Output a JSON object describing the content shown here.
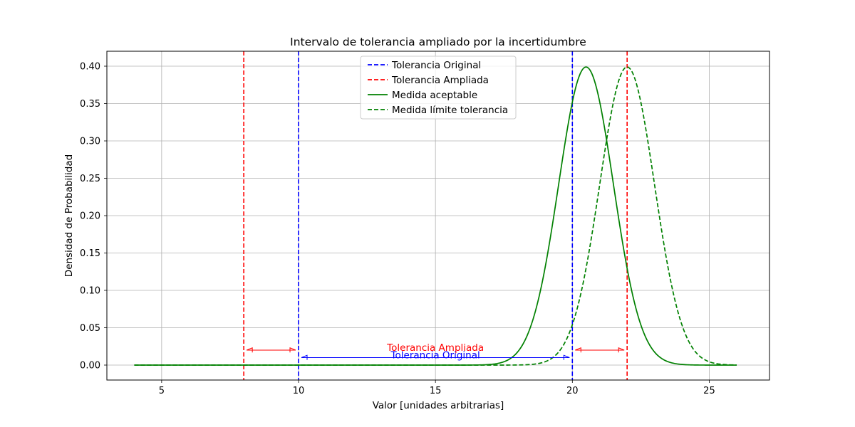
{
  "chart_data": {
    "type": "line",
    "title": "Intervalo de tolerancia ampliado por la incertidumbre",
    "xlabel": "Valor [unidades arbitrarias]",
    "ylabel": "Densidad de Probabilidad",
    "xlim": [
      3,
      27.2
    ],
    "ylim": [
      -0.02,
      0.42
    ],
    "xticks": [
      5,
      10,
      15,
      20,
      25
    ],
    "xtick_labels": [
      "5",
      "10",
      "15",
      "20",
      "25"
    ],
    "yticks": [
      0,
      0.05,
      0.1,
      0.15,
      0.2,
      0.25,
      0.3,
      0.35,
      0.4
    ],
    "ytick_labels": [
      "0.00",
      "0.05",
      "0.10",
      "0.15",
      "0.20",
      "0.25",
      "0.30",
      "0.35",
      "0.40"
    ],
    "grid": true,
    "legend_position": "upper-center",
    "vlines": [
      {
        "series": "Tolerancia Original",
        "x": 10,
        "color": "#0000ff",
        "dashed": true
      },
      {
        "series": "Tolerancia Original",
        "x": 20,
        "color": "#0000ff",
        "dashed": true
      },
      {
        "series": "Tolerancia Ampliada",
        "x": 8,
        "color": "#ff0000",
        "dashed": true
      },
      {
        "series": "Tolerancia Ampliada",
        "x": 22,
        "color": "#ff0000",
        "dashed": true
      }
    ],
    "series": [
      {
        "name": "Tolerancia Original",
        "color": "#0000ff",
        "style": "dashed",
        "kind": "vline"
      },
      {
        "name": "Tolerancia Ampliada",
        "color": "#ff0000",
        "style": "dashed",
        "kind": "vline"
      },
      {
        "name": "Medida aceptable",
        "color": "#008000",
        "style": "solid",
        "kind": "normal",
        "mean": 20.5,
        "sd": 1.0,
        "x_range": [
          4,
          26
        ]
      },
      {
        "name": "Medida límite tolerancia",
        "color": "#008000",
        "style": "dashed",
        "kind": "normal",
        "mean": 22,
        "sd": 1.0,
        "x_range": [
          4,
          26
        ]
      }
    ],
    "arrows": [
      {
        "x1": 8,
        "x2": 10,
        "y": 0.02,
        "color": "#ff0000"
      },
      {
        "x1": 20,
        "x2": 22,
        "y": 0.02,
        "color": "#ff0000"
      },
      {
        "x1": 10,
        "x2": 20,
        "y": 0.01,
        "color": "#0000ff"
      }
    ],
    "annotations": [
      {
        "text": "Tolerancia Ampliada",
        "x": 15,
        "y": 0.021,
        "color": "#ff0000"
      },
      {
        "text": "Tolerancia Original",
        "x": 15,
        "y": 0.011,
        "color": "#0000ff"
      }
    ]
  }
}
